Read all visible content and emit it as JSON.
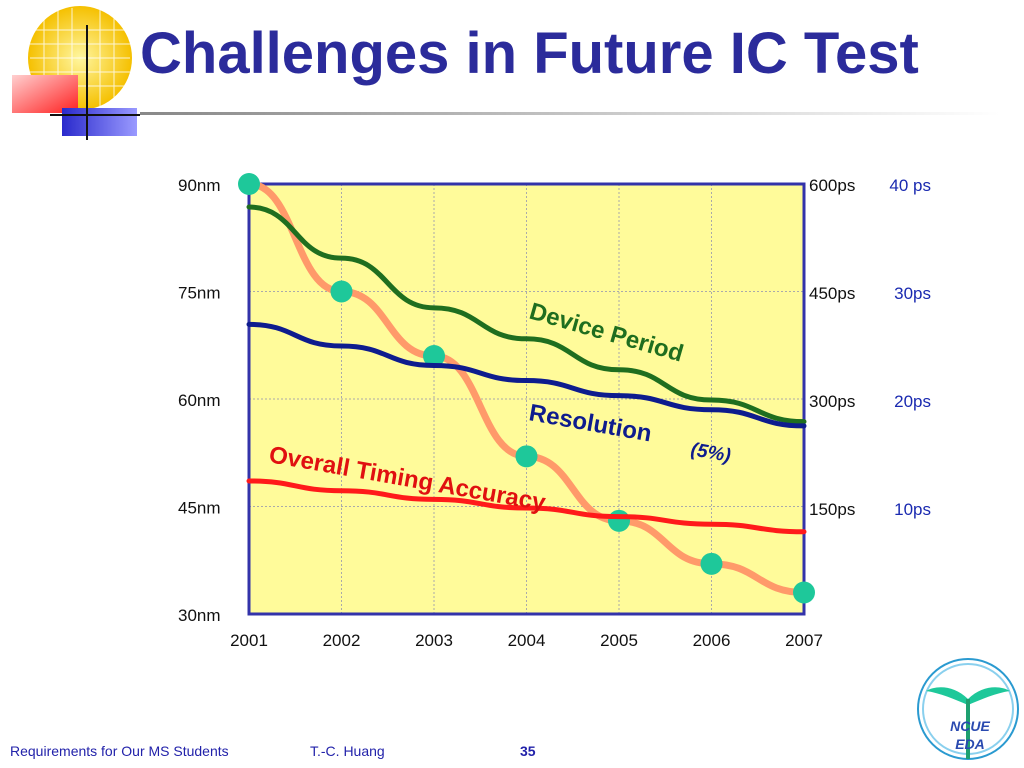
{
  "slide": {
    "title": "Challenges in Future IC Test",
    "footer_text": "Requirements for Our MS Students",
    "footer_author": "T.-C. Huang",
    "page_number": "35",
    "logo_text_top": "NCUE",
    "logo_text_bottom": "EDA"
  },
  "colors": {
    "title": "#2b2b9b",
    "plot_bg": "#fffb9a",
    "axis": "#3333aa",
    "device_period": "#1f6e1f",
    "resolution": "#0e1c8e",
    "timing_accuracy": "#ff1a1a",
    "node_curve": "#ff9a6a",
    "node_marker": "#1ec89a"
  },
  "chart_data": {
    "type": "line",
    "x": [
      "2001",
      "2002",
      "2003",
      "2004",
      "2005",
      "2006",
      "2007"
    ],
    "left_axis": {
      "ticks": [
        "90nm",
        "75nm",
        "60nm",
        "45nm",
        "30nm"
      ],
      "values": [
        90,
        75,
        60,
        45,
        30
      ],
      "ylim": [
        30,
        90
      ]
    },
    "right_axis_period": {
      "ticks": [
        "600ps",
        "450ps",
        "300ps",
        "150ps"
      ],
      "values": [
        600,
        450,
        300,
        150
      ]
    },
    "right_axis_resolution": {
      "ticks": [
        "40 ps",
        "30ps",
        "20ps",
        "10ps"
      ],
      "values": [
        40,
        30,
        20,
        10
      ]
    },
    "grid": true,
    "series": [
      {
        "name": "Device Period",
        "axis": "period_ps",
        "values": [
          568,
          497,
          428,
          385,
          342,
          300,
          270
        ]
      },
      {
        "name": "Resolution",
        "suffix": "(5%)",
        "axis": "resolution_ps",
        "values": [
          27,
          25,
          23.2,
          21.8,
          20.4,
          19.1,
          17.6
        ]
      },
      {
        "name": "Overall Timing Accuracy",
        "axis": "resolution_ps",
        "values": [
          12.5,
          11.6,
          10.8,
          10,
          9.2,
          8.5,
          7.8
        ]
      },
      {
        "name": "",
        "axis": "node_nm",
        "values": [
          90,
          75,
          66,
          52,
          43,
          37,
          33
        ],
        "markers": true
      }
    ]
  }
}
